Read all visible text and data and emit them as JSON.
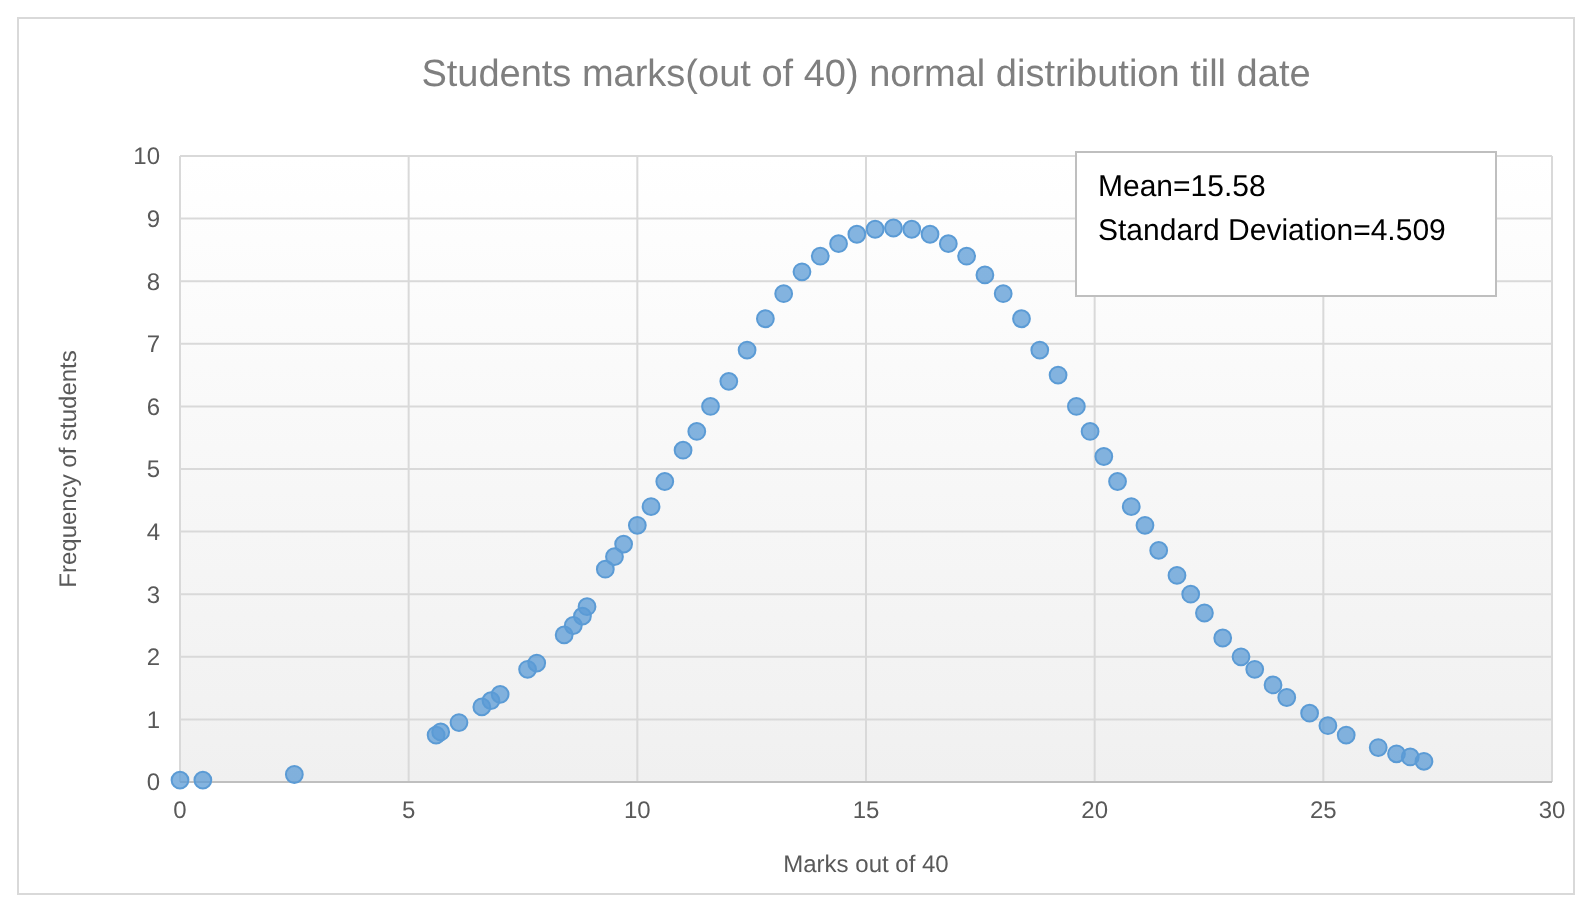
{
  "chart_data": {
    "type": "scatter",
    "title": "Students marks(out of 40) normal distribution till date",
    "xlabel": "Marks out of 40",
    "ylabel": "Frequency of students",
    "annotations": [
      "Mean=15.58",
      "Standard Deviation=4.509"
    ],
    "xlim": [
      0,
      30
    ],
    "xticks": [
      0,
      5,
      10,
      15,
      20,
      25,
      30
    ],
    "ylim": [
      0,
      10
    ],
    "yticks": [
      0,
      1,
      2,
      3,
      4,
      5,
      6,
      7,
      8,
      9,
      10
    ],
    "grid": true,
    "marker": "circle",
    "series": [
      {
        "color": "#5b9bd5",
        "x": [
          0,
          0.5,
          2.5,
          5.6,
          5.7,
          6.1,
          6.6,
          6.8,
          7.0,
          7.6,
          7.8,
          8.4,
          8.6,
          8.8,
          8.9,
          9.3,
          9.5,
          9.7,
          10.0,
          10.3,
          10.6,
          11.0,
          11.3,
          11.6,
          12.0,
          12.4,
          12.8,
          13.2,
          13.6,
          14.0,
          14.4,
          14.8,
          15.2,
          15.6,
          16.0,
          16.4,
          16.8,
          17.2,
          17.6,
          18.0,
          18.4,
          18.8,
          19.2,
          19.6,
          19.9,
          20.2,
          20.5,
          20.8,
          21.1,
          21.4,
          21.8,
          22.1,
          22.4,
          22.8,
          23.2,
          23.5,
          23.9,
          24.2,
          24.7,
          25.1,
          25.5,
          26.2,
          26.6,
          26.9,
          27.2
        ],
        "values": [
          0.03,
          0.03,
          0.12,
          0.75,
          0.8,
          0.95,
          1.2,
          1.3,
          1.4,
          1.8,
          1.9,
          2.35,
          2.5,
          2.65,
          2.8,
          3.4,
          3.6,
          3.8,
          4.1,
          4.4,
          4.8,
          5.3,
          5.6,
          6.0,
          6.4,
          6.9,
          7.4,
          7.8,
          8.15,
          8.4,
          8.6,
          8.75,
          8.83,
          8.85,
          8.83,
          8.75,
          8.6,
          8.4,
          8.1,
          7.8,
          7.4,
          6.9,
          6.5,
          6.0,
          5.6,
          5.2,
          4.8,
          4.4,
          4.1,
          3.7,
          3.3,
          3.0,
          2.7,
          2.3,
          2.0,
          1.8,
          1.55,
          1.35,
          1.1,
          0.9,
          0.75,
          0.55,
          0.45,
          0.4,
          0.33
        ]
      }
    ]
  }
}
